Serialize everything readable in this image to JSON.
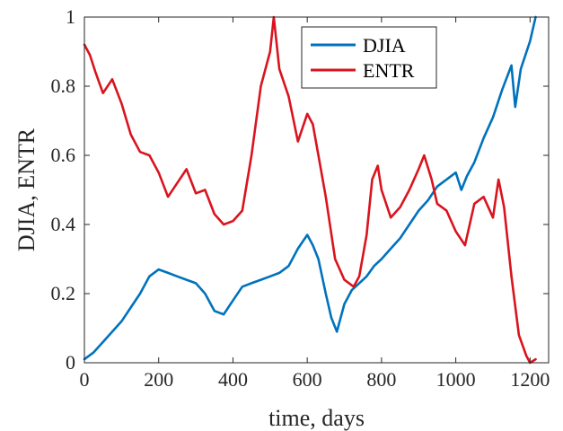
{
  "chart_data": {
    "type": "line",
    "title": "",
    "xlabel": "time, days",
    "ylabel": "DJIA, ENTR",
    "xlim": [
      0,
      1250
    ],
    "ylim": [
      0,
      1
    ],
    "xticks": [
      0,
      200,
      400,
      600,
      800,
      1000,
      1200
    ],
    "xtick_labels": [
      "0",
      "200",
      "400",
      "600",
      "800",
      "1000",
      "1200"
    ],
    "yticks": [
      0,
      0.2,
      0.4,
      0.6,
      0.8,
      1
    ],
    "ytick_labels": [
      "0",
      "0.2",
      "0.4",
      "0.6",
      "0.8",
      "1"
    ],
    "grid": false,
    "legend_position": "top-center",
    "series": [
      {
        "name": "DJIA",
        "color": "#0072BD",
        "x": [
          0,
          25,
          50,
          75,
          100,
          125,
          150,
          175,
          200,
          225,
          250,
          275,
          300,
          325,
          350,
          375,
          400,
          425,
          450,
          475,
          500,
          525,
          550,
          575,
          600,
          615,
          630,
          650,
          665,
          680,
          700,
          720,
          740,
          760,
          780,
          800,
          825,
          850,
          875,
          900,
          925,
          950,
          975,
          1000,
          1015,
          1030,
          1050,
          1075,
          1100,
          1125,
          1150,
          1160,
          1175,
          1200,
          1215
        ],
        "y": [
          0.01,
          0.03,
          0.06,
          0.09,
          0.12,
          0.16,
          0.2,
          0.25,
          0.27,
          0.26,
          0.25,
          0.24,
          0.23,
          0.2,
          0.15,
          0.14,
          0.18,
          0.22,
          0.23,
          0.24,
          0.25,
          0.26,
          0.28,
          0.33,
          0.37,
          0.34,
          0.3,
          0.2,
          0.13,
          0.09,
          0.17,
          0.21,
          0.23,
          0.25,
          0.28,
          0.3,
          0.33,
          0.36,
          0.4,
          0.44,
          0.47,
          0.51,
          0.53,
          0.55,
          0.5,
          0.54,
          0.58,
          0.65,
          0.71,
          0.79,
          0.86,
          0.74,
          0.85,
          0.93,
          1.0
        ]
      },
      {
        "name": "ENTR",
        "color": "#D9141E",
        "x": [
          0,
          15,
          30,
          50,
          75,
          100,
          125,
          150,
          175,
          200,
          225,
          250,
          275,
          300,
          325,
          350,
          375,
          400,
          425,
          450,
          475,
          500,
          510,
          525,
          550,
          575,
          600,
          615,
          630,
          650,
          675,
          700,
          725,
          740,
          760,
          775,
          790,
          800,
          825,
          850,
          875,
          900,
          915,
          935,
          950,
          975,
          1000,
          1025,
          1050,
          1075,
          1100,
          1115,
          1130,
          1150,
          1170,
          1190,
          1200,
          1215
        ],
        "y": [
          0.92,
          0.89,
          0.84,
          0.78,
          0.82,
          0.75,
          0.66,
          0.61,
          0.6,
          0.55,
          0.48,
          0.52,
          0.56,
          0.49,
          0.5,
          0.43,
          0.4,
          0.41,
          0.44,
          0.6,
          0.8,
          0.9,
          1.0,
          0.85,
          0.77,
          0.64,
          0.72,
          0.69,
          0.6,
          0.48,
          0.3,
          0.24,
          0.22,
          0.25,
          0.37,
          0.53,
          0.57,
          0.5,
          0.42,
          0.45,
          0.5,
          0.56,
          0.6,
          0.53,
          0.46,
          0.44,
          0.38,
          0.34,
          0.46,
          0.48,
          0.42,
          0.53,
          0.45,
          0.25,
          0.08,
          0.02,
          0.0,
          0.01
        ]
      }
    ]
  }
}
